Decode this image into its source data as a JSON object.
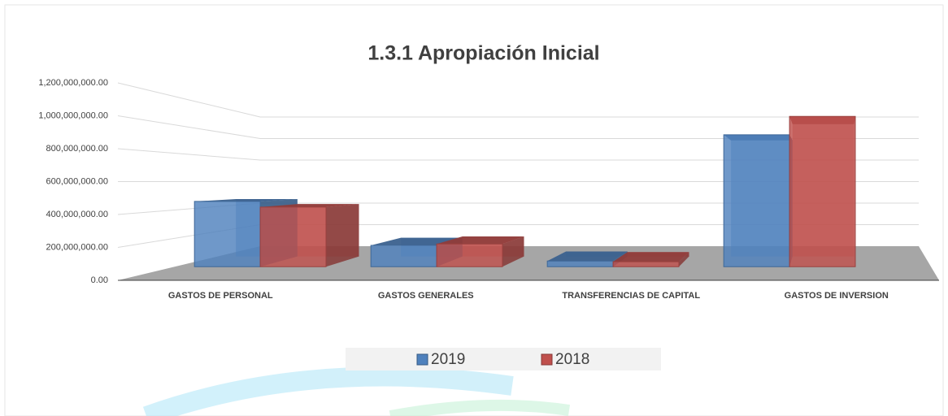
{
  "chart_data": {
    "type": "bar3d",
    "title": "1.3.1 Apropiación Inicial",
    "categories": [
      "GASTOS DE PERSONAL",
      "GASTOS GENERALES",
      "TRANSFERENCIAS DE CAPITAL",
      "GASTOS DE INVERSION"
    ],
    "series": [
      {
        "name": "2019",
        "color": "#4f81bd",
        "values": [
          460000000,
          150000000,
          40000000,
          930000000
        ]
      },
      {
        "name": "2018",
        "color": "#c0504d",
        "values": [
          420000000,
          160000000,
          35000000,
          1060000000
        ]
      }
    ],
    "ylim": [
      0,
      1200000000
    ],
    "yticks": [
      {
        "value": 0,
        "label": "0.00"
      },
      {
        "value": 200000000,
        "label": "200,000,000.00"
      },
      {
        "value": 400000000,
        "label": "400,000,000.00"
      },
      {
        "value": 600000000,
        "label": "600,000,000.00"
      },
      {
        "value": 800000000,
        "label": "800,000,000.00"
      },
      {
        "value": 1000000000,
        "label": "1,000,000,000.00"
      },
      {
        "value": 1200000000,
        "label": "1,200,000,000.00"
      }
    ],
    "grid": true,
    "legend": "bottom"
  }
}
